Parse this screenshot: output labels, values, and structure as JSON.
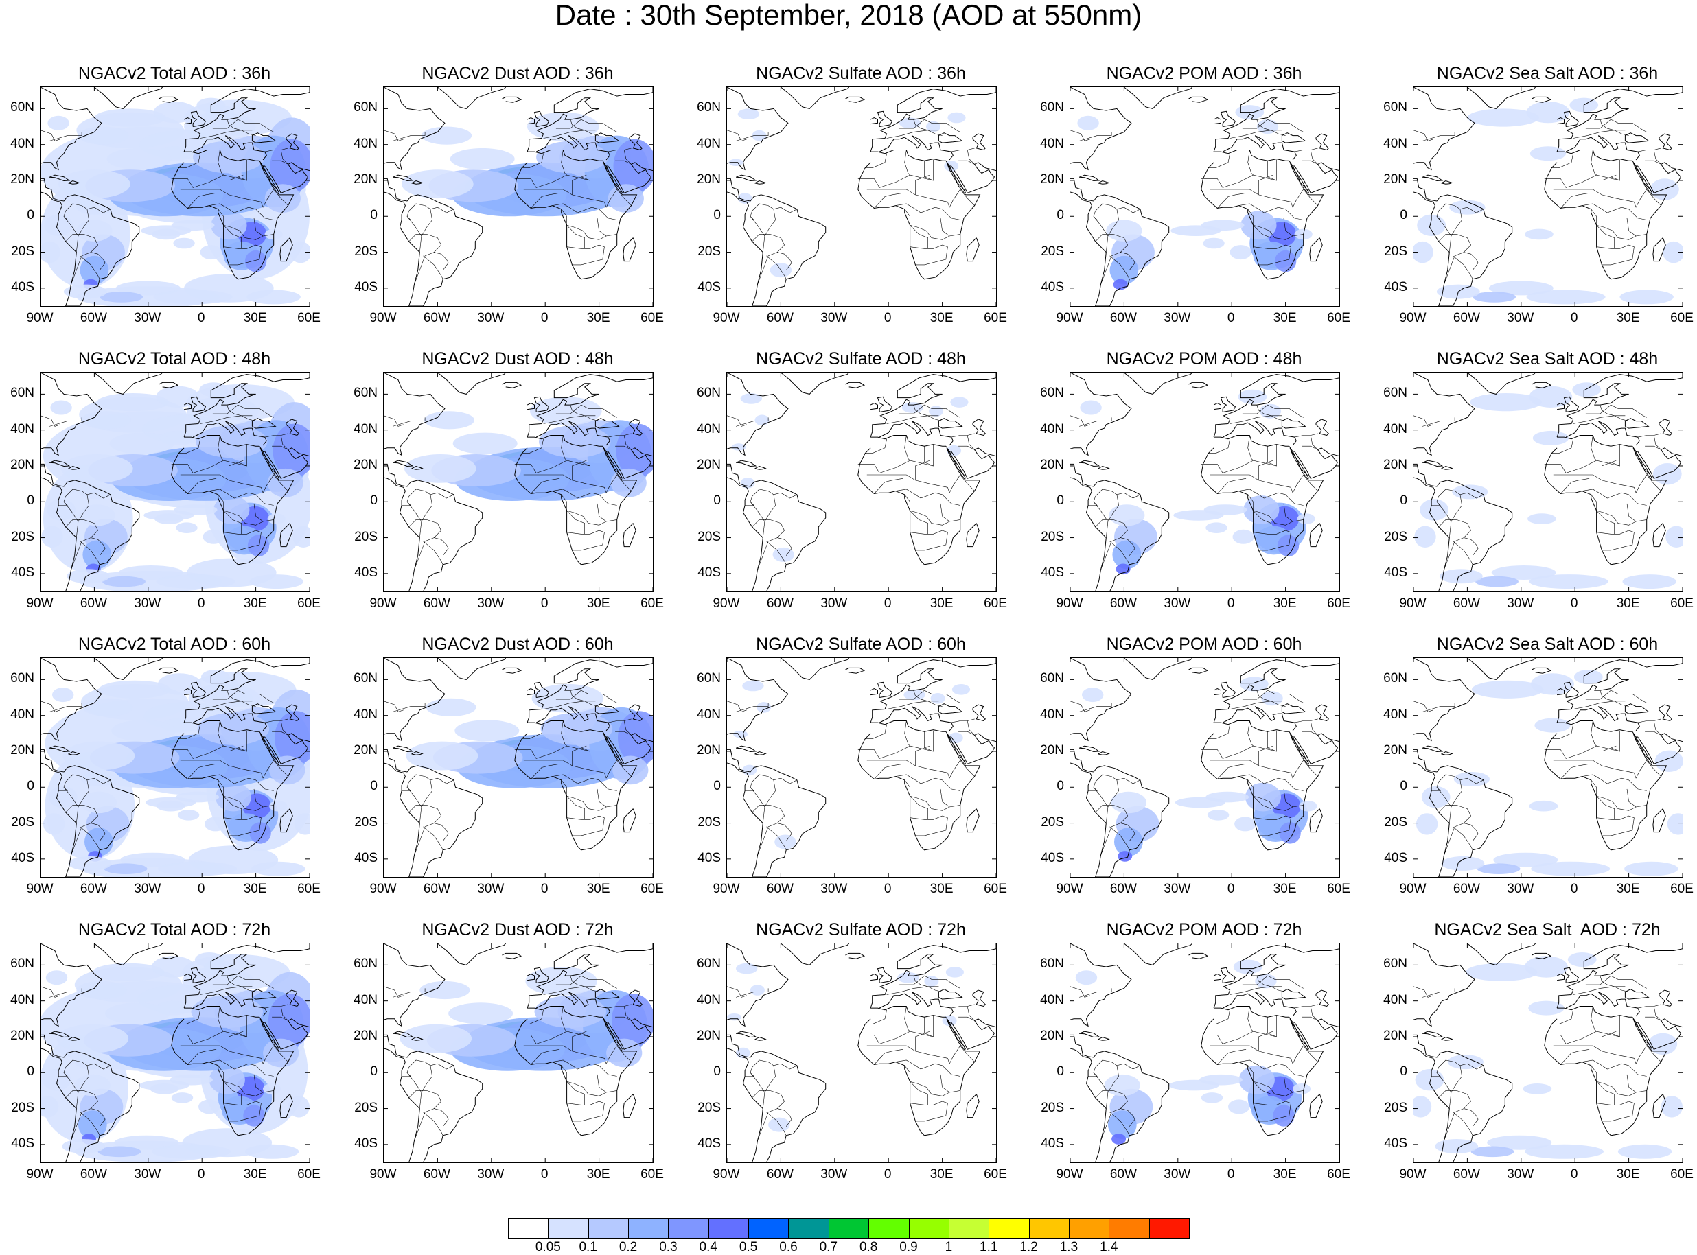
{
  "title": "Date : 30th September, 2018 (AOD at 550nm)",
  "lat_ticks": [
    "60N",
    "40N",
    "20N",
    "0",
    "20S",
    "40S"
  ],
  "lon_ticks": [
    "90W",
    "60W",
    "30W",
    "0",
    "30E",
    "60E"
  ],
  "map_extent": {
    "lon": [
      -90,
      60
    ],
    "lat": [
      -50,
      72
    ]
  },
  "panels": [
    [
      {
        "title": "NGACv2 Total AOD : 36h",
        "species": "total"
      },
      {
        "title": "NGACv2 Dust AOD : 36h",
        "species": "dust"
      },
      {
        "title": "NGACv2 Sulfate AOD : 36h",
        "species": "sulfate"
      },
      {
        "title": "NGACv2 POM AOD : 36h",
        "species": "pom"
      },
      {
        "title": "NGACv2 Sea Salt AOD : 36h",
        "species": "seasalt"
      }
    ],
    [
      {
        "title": "NGACv2 Total AOD : 48h",
        "species": "total"
      },
      {
        "title": "NGACv2 Dust AOD : 48h",
        "species": "dust"
      },
      {
        "title": "NGACv2 Sulfate AOD : 48h",
        "species": "sulfate"
      },
      {
        "title": "NGACv2 POM AOD : 48h",
        "species": "pom"
      },
      {
        "title": "NGACv2 Sea Salt AOD : 48h",
        "species": "seasalt"
      }
    ],
    [
      {
        "title": "NGACv2 Total AOD : 60h",
        "species": "total"
      },
      {
        "title": "NGACv2 Dust AOD : 60h",
        "species": "dust"
      },
      {
        "title": "NGACv2 Sulfate AOD : 60h",
        "species": "sulfate"
      },
      {
        "title": "NGACv2 POM AOD : 60h",
        "species": "pom"
      },
      {
        "title": "NGACv2 Sea Salt AOD : 60h",
        "species": "seasalt"
      }
    ],
    [
      {
        "title": "NGACv2 Total AOD : 72h",
        "species": "total"
      },
      {
        "title": "NGACv2 Dust AOD : 72h",
        "species": "dust"
      },
      {
        "title": "NGACv2 Sulfate AOD : 72h",
        "species": "sulfate"
      },
      {
        "title": "NGACv2 POM AOD : 72h",
        "species": "pom"
      },
      {
        "title": "NGACv2 Sea Salt  AOD : 72h",
        "species": "seasalt"
      }
    ]
  ],
  "colorbar": {
    "colors": [
      "#ffffff",
      "#d6e2ff",
      "#b5c9ff",
      "#8eb2ff",
      "#7f96ff",
      "#6370ff",
      "#0063ff",
      "#009696",
      "#00c633",
      "#63ff00",
      "#96ff00",
      "#c6ff33",
      "#ffff00",
      "#ffc600",
      "#ffa000",
      "#ff7c00",
      "#ff1900"
    ],
    "ticks": [
      "0.05",
      "0.1",
      "0.2",
      "0.3",
      "0.4",
      "0.5",
      "0.6",
      "0.7",
      "0.8",
      "0.9",
      "1",
      "1.1",
      "1.2",
      "1.3",
      "1.4"
    ]
  }
}
